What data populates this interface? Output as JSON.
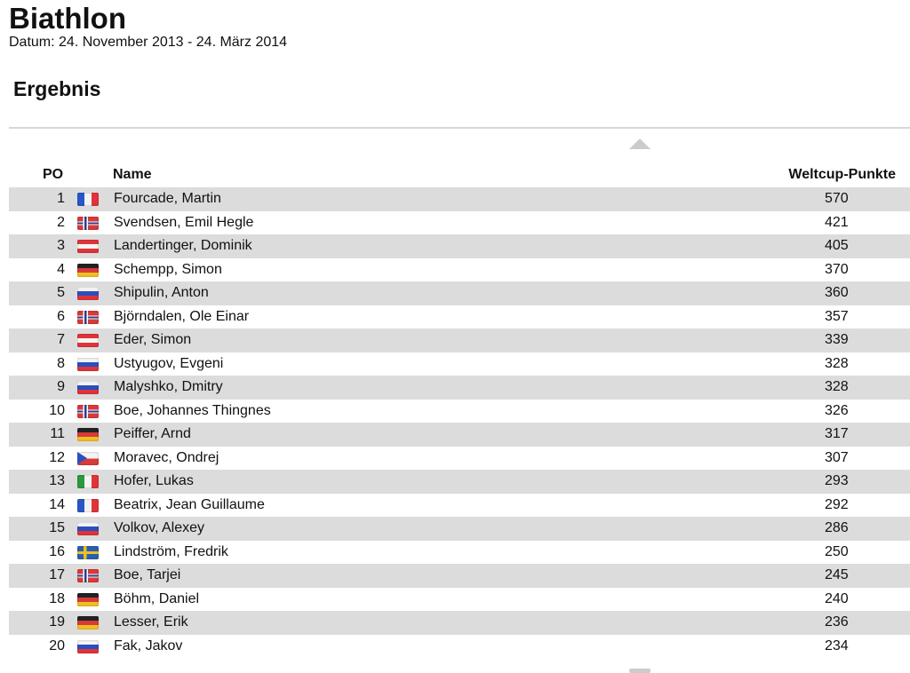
{
  "page": {
    "title": "Biathlon",
    "date": "Datum: 24. November 2013 - 24. März 2014",
    "section": "Ergebnis"
  },
  "table": {
    "headers": {
      "pos": "PO",
      "name": "Name",
      "points": "Weltcup-Punkte"
    },
    "rows": [
      {
        "pos": "1",
        "flag": "fra",
        "name": "Fourcade, Martin",
        "points": "570"
      },
      {
        "pos": "2",
        "flag": "nor",
        "name": "Svendsen, Emil Hegle",
        "points": "421"
      },
      {
        "pos": "3",
        "flag": "aut",
        "name": "Landertinger, Dominik",
        "points": "405"
      },
      {
        "pos": "4",
        "flag": "ger",
        "name": "Schempp, Simon",
        "points": "370"
      },
      {
        "pos": "5",
        "flag": "rus",
        "name": "Shipulin, Anton",
        "points": "360"
      },
      {
        "pos": "6",
        "flag": "nor",
        "name": "Björndalen, Ole Einar",
        "points": "357"
      },
      {
        "pos": "7",
        "flag": "aut",
        "name": "Eder, Simon",
        "points": "339"
      },
      {
        "pos": "8",
        "flag": "rus",
        "name": "Ustyugov, Evgeni",
        "points": "328"
      },
      {
        "pos": "9",
        "flag": "rus",
        "name": "Malyshko, Dmitry",
        "points": "328"
      },
      {
        "pos": "10",
        "flag": "nor",
        "name": "Boe, Johannes Thingnes",
        "points": "326"
      },
      {
        "pos": "11",
        "flag": "ger",
        "name": "Peiffer, Arnd",
        "points": "317"
      },
      {
        "pos": "12",
        "flag": "cze",
        "name": "Moravec, Ondrej",
        "points": "307"
      },
      {
        "pos": "13",
        "flag": "ita",
        "name": "Hofer, Lukas",
        "points": "293"
      },
      {
        "pos": "14",
        "flag": "fra",
        "name": "Beatrix, Jean Guillaume",
        "points": "292"
      },
      {
        "pos": "15",
        "flag": "rus",
        "name": "Volkov, Alexey",
        "points": "286"
      },
      {
        "pos": "16",
        "flag": "swe",
        "name": "Lindström, Fredrik",
        "points": "250"
      },
      {
        "pos": "17",
        "flag": "nor",
        "name": "Boe, Tarjei",
        "points": "245"
      },
      {
        "pos": "18",
        "flag": "ger",
        "name": "Böhm, Daniel",
        "points": "240"
      },
      {
        "pos": "19",
        "flag": "ger",
        "name": "Lesser, Erik",
        "points": "236"
      },
      {
        "pos": "20",
        "flag": "slo",
        "name": "Fak, Jakov",
        "points": "234"
      }
    ]
  },
  "colors": {
    "row_alt": "#dcdcdc",
    "scroll_arrow": "#cccccc"
  }
}
